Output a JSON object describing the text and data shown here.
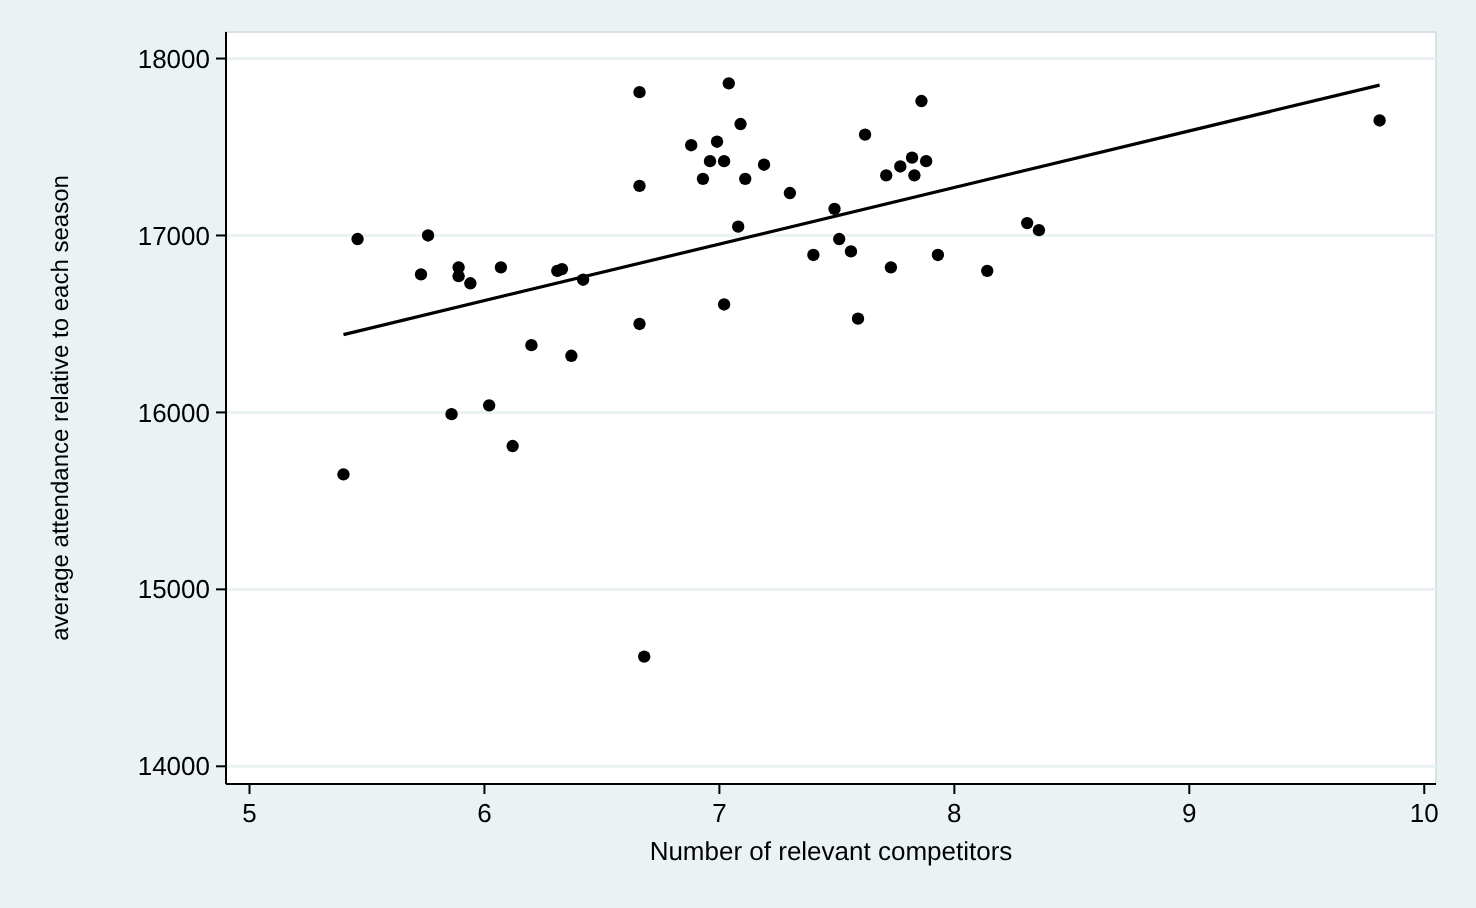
{
  "chart_data": {
    "type": "scatter",
    "xlabel": "Number of relevant competitors",
    "ylabel": "average attendance relative to each season",
    "xlim": [
      4.9,
      10.05
    ],
    "ylim": [
      13900,
      18150
    ],
    "xticks": [
      5,
      6,
      7,
      8,
      9,
      10
    ],
    "yticks": [
      14000,
      15000,
      16000,
      17000,
      18000
    ],
    "grid": "y",
    "marker": "circle",
    "series": [
      {
        "color": "#000000",
        "x": [
          5.4,
          5.46,
          5.76,
          5.73,
          5.89,
          5.89,
          5.94,
          6.07,
          6.31,
          6.33,
          6.42,
          5.86,
          6.02,
          6.12,
          6.2,
          6.37,
          6.66,
          6.66,
          6.66,
          6.68,
          6.88,
          6.99,
          7.04,
          7.09,
          6.96,
          7.02,
          6.93,
          7.11,
          7.19,
          7.08,
          7.02,
          7.3,
          7.49,
          7.4,
          7.51,
          7.56,
          7.59,
          7.62,
          7.73,
          7.71,
          7.77,
          7.82,
          7.83,
          7.88,
          7.86,
          7.93,
          8.14,
          8.31,
          8.36,
          9.81
        ],
        "values": [
          15650,
          16980,
          17000,
          16780,
          16820,
          16770,
          16730,
          16820,
          16800,
          16810,
          16750,
          15990,
          16040,
          15810,
          16380,
          16320,
          16500,
          17280,
          17810,
          14620,
          17510,
          17530,
          17860,
          17630,
          17420,
          17420,
          17320,
          17320,
          17400,
          17050,
          16610,
          17240,
          17150,
          16890,
          16980,
          16910,
          16530,
          17570,
          16820,
          17340,
          17390,
          17440,
          17340,
          17420,
          17760,
          16890,
          16800,
          17070,
          17030,
          17650
        ]
      },
      {
        "type": "line",
        "color": "#000000",
        "marker": "none",
        "x": [
          5.4,
          9.81
        ],
        "values": [
          16440,
          17850
        ]
      }
    ]
  }
}
